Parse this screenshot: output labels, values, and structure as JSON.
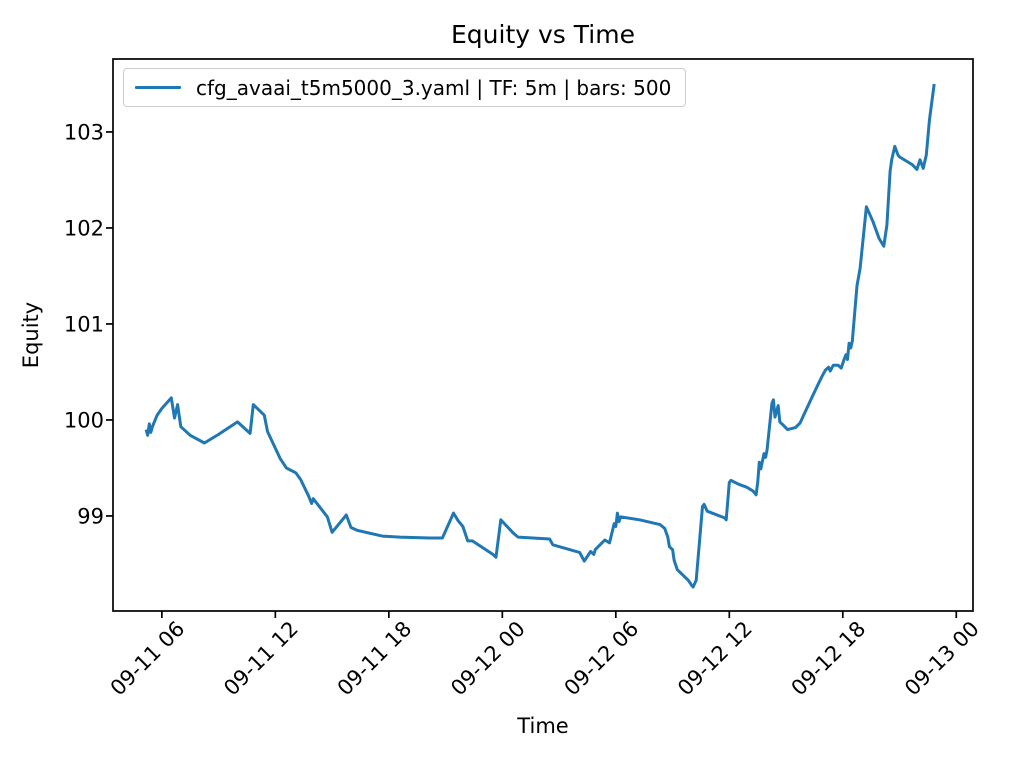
{
  "figure": {
    "title": "Equity vs Time",
    "xlabel": "Time",
    "ylabel": "Equity"
  },
  "legend": {
    "label": "cfg_avaai_t5m5000_3.yaml | TF: 5m | bars: 500"
  },
  "chart_data": {
    "type": "line",
    "title": "Equity vs Time",
    "xlabel": "Time",
    "ylabel": "Equity",
    "grid": false,
    "legend_position": "upper left",
    "line_color": "#1f77b4",
    "line_width": 3,
    "x_tick_labels": [
      "09-11 06",
      "09-11 12",
      "09-11 18",
      "09-12 00",
      "09-12 06",
      "09-12 12",
      "09-12 18",
      "09-13 00"
    ],
    "y_tick_labels": [
      "99",
      "100",
      "101",
      "102",
      "103"
    ],
    "y_ticks": [
      99,
      100,
      101,
      102,
      103
    ],
    "xlim": [
      "09-11 03:25",
      "09-13 00:53"
    ],
    "ylim": [
      98.01,
      103.76
    ],
    "series": [
      {
        "name": "cfg_avaai_t5m5000_3.yaml | TF: 5m | bars: 500",
        "timeframe": "5m",
        "bars": 500,
        "color": "#1f77b4",
        "points": [
          [
            "09-11 05:10",
            99.9
          ],
          [
            "09-11 05:15",
            99.84
          ],
          [
            "09-11 05:20",
            99.96
          ],
          [
            "09-11 05:25",
            99.87
          ],
          [
            "09-11 05:30",
            99.93
          ],
          [
            "09-11 05:45",
            100.05
          ],
          [
            "09-11 06:00",
            100.12
          ],
          [
            "09-11 06:30",
            100.23
          ],
          [
            "09-11 06:40",
            100.02
          ],
          [
            "09-11 06:50",
            100.16
          ],
          [
            "09-11 07:00",
            99.93
          ],
          [
            "09-11 07:30",
            99.84
          ],
          [
            "09-11 08:15",
            99.76
          ],
          [
            "09-11 09:00",
            99.85
          ],
          [
            "09-11 10:00",
            99.98
          ],
          [
            "09-11 10:40",
            99.86
          ],
          [
            "09-11 10:50",
            100.16
          ],
          [
            "09-11 11:25",
            100.05
          ],
          [
            "09-11 11:35",
            99.88
          ],
          [
            "09-11 12:15",
            99.6
          ],
          [
            "09-11 12:35",
            99.5
          ],
          [
            "09-11 13:05",
            99.45
          ],
          [
            "09-11 13:20",
            99.38
          ],
          [
            "09-11 13:45",
            99.21
          ],
          [
            "09-11 13:55",
            99.13
          ],
          [
            "09-11 14:00",
            99.18
          ],
          [
            "09-11 14:45",
            98.99
          ],
          [
            "09-11 15:00",
            98.83
          ],
          [
            "09-11 15:45",
            99.01
          ],
          [
            "09-11 16:00",
            98.88
          ],
          [
            "09-11 16:20",
            98.85
          ],
          [
            "09-11 17:40",
            98.79
          ],
          [
            "09-11 18:35",
            98.78
          ],
          [
            "09-11 20:10",
            98.77
          ],
          [
            "09-11 20:50",
            98.77
          ],
          [
            "09-11 21:25",
            99.03
          ],
          [
            "09-11 21:40",
            98.95
          ],
          [
            "09-11 21:55",
            98.89
          ],
          [
            "09-11 22:10",
            98.74
          ],
          [
            "09-11 22:25",
            98.74
          ],
          [
            "09-11 23:30",
            98.6
          ],
          [
            "09-11 23:40",
            98.57
          ],
          [
            "09-11 23:55",
            98.96
          ],
          [
            "09-12 00:35",
            98.82
          ],
          [
            "09-12 00:50",
            98.78
          ],
          [
            "09-12 02:30",
            98.76
          ],
          [
            "09-12 02:40",
            98.7
          ],
          [
            "09-12 04:05",
            98.62
          ],
          [
            "09-12 04:20",
            98.53
          ],
          [
            "09-12 04:40",
            98.63
          ],
          [
            "09-12 04:50",
            98.6
          ],
          [
            "09-12 04:55",
            98.65
          ],
          [
            "09-12 05:25",
            98.75
          ],
          [
            "09-12 05:40",
            98.72
          ],
          [
            "09-12 05:55",
            98.92
          ],
          [
            "09-12 06:00",
            98.89
          ],
          [
            "09-12 06:05",
            99.03
          ],
          [
            "09-12 06:10",
            98.94
          ],
          [
            "09-12 06:15",
            98.99
          ],
          [
            "09-12 07:15",
            98.96
          ],
          [
            "09-12 08:20",
            98.91
          ],
          [
            "09-12 08:35",
            98.87
          ],
          [
            "09-12 08:45",
            98.78
          ],
          [
            "09-12 08:50",
            98.68
          ],
          [
            "09-12 09:00",
            98.65
          ],
          [
            "09-12 09:05",
            98.54
          ],
          [
            "09-12 09:15",
            98.44
          ],
          [
            "09-12 09:50",
            98.33
          ],
          [
            "09-12 10:00",
            98.28
          ],
          [
            "09-12 10:05",
            98.26
          ],
          [
            "09-12 10:15",
            98.33
          ],
          [
            "09-12 10:35",
            99.1
          ],
          [
            "09-12 10:40",
            99.12
          ],
          [
            "09-12 10:50",
            99.05
          ],
          [
            "09-12 11:45",
            98.98
          ],
          [
            "09-12 11:50",
            98.96
          ],
          [
            "09-12 12:00",
            99.35
          ],
          [
            "09-12 12:05",
            99.37
          ],
          [
            "09-12 12:30",
            99.33
          ],
          [
            "09-12 12:55",
            99.3
          ],
          [
            "09-12 13:15",
            99.26
          ],
          [
            "09-12 13:25",
            99.22
          ],
          [
            "09-12 13:30",
            99.35
          ],
          [
            "09-12 13:35",
            99.56
          ],
          [
            "09-12 13:40",
            99.49
          ],
          [
            "09-12 13:50",
            99.65
          ],
          [
            "09-12 13:55",
            99.61
          ],
          [
            "09-12 14:00",
            99.69
          ],
          [
            "09-12 14:15",
            100.17
          ],
          [
            "09-12 14:20",
            100.21
          ],
          [
            "09-12 14:25",
            100.03
          ],
          [
            "09-12 14:35",
            100.15
          ],
          [
            "09-12 14:40",
            99.98
          ],
          [
            "09-12 14:50",
            99.95
          ],
          [
            "09-12 15:05",
            99.9
          ],
          [
            "09-12 15:30",
            99.92
          ],
          [
            "09-12 15:45",
            99.97
          ],
          [
            "09-12 16:00",
            100.08
          ],
          [
            "09-12 16:20",
            100.22
          ],
          [
            "09-12 16:40",
            100.36
          ],
          [
            "09-12 16:55",
            100.46
          ],
          [
            "09-12 17:05",
            100.52
          ],
          [
            "09-12 17:15",
            100.55
          ],
          [
            "09-12 17:20",
            100.51
          ],
          [
            "09-12 17:30",
            100.57
          ],
          [
            "09-12 17:45",
            100.57
          ],
          [
            "09-12 17:55",
            100.54
          ],
          [
            "09-12 18:05",
            100.64
          ],
          [
            "09-12 18:10",
            100.68
          ],
          [
            "09-12 18:15",
            100.63
          ],
          [
            "09-12 18:20",
            100.8
          ],
          [
            "09-12 18:25",
            100.75
          ],
          [
            "09-12 18:30",
            100.82
          ],
          [
            "09-12 18:45",
            101.4
          ],
          [
            "09-12 18:55",
            101.58
          ],
          [
            "09-12 19:15",
            102.22
          ],
          [
            "09-12 19:35",
            102.07
          ],
          [
            "09-12 19:55",
            101.89
          ],
          [
            "09-12 20:10",
            101.81
          ],
          [
            "09-12 20:20",
            102.03
          ],
          [
            "09-12 20:30",
            102.59
          ],
          [
            "09-12 20:35",
            102.71
          ],
          [
            "09-12 20:45",
            102.85
          ],
          [
            "09-12 20:55",
            102.76
          ],
          [
            "09-12 21:00",
            102.74
          ],
          [
            "09-12 21:40",
            102.66
          ],
          [
            "09-12 21:55",
            102.61
          ],
          [
            "09-12 22:05",
            102.71
          ],
          [
            "09-12 22:15",
            102.62
          ],
          [
            "09-12 22:25",
            102.76
          ],
          [
            "09-12 22:35",
            103.13
          ],
          [
            "09-12 22:50",
            103.5
          ]
        ]
      }
    ]
  }
}
